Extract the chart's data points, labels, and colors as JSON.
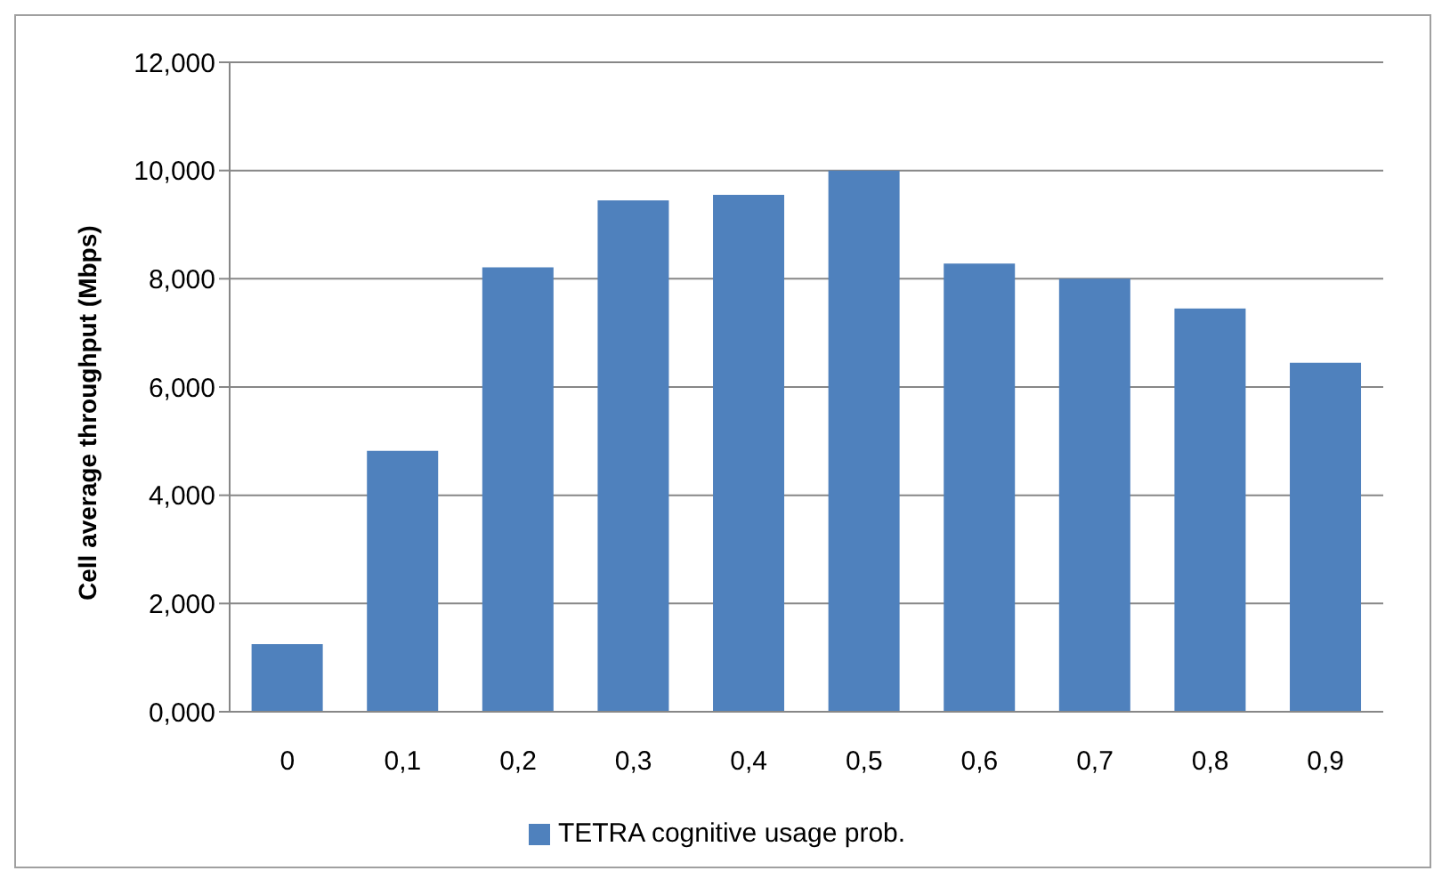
{
  "chart_data": {
    "type": "bar",
    "ylabel": "Cell average throughput (Mbps)",
    "categories": [
      "0",
      "0,1",
      "0,2",
      "0,3",
      "0,4",
      "0,5",
      "0,6",
      "0,7",
      "0,8",
      "0,9"
    ],
    "series": [
      {
        "name": "TETRA cognitive usage prob.",
        "color": "#4f81bd",
        "values": [
          1.25,
          4.82,
          8.21,
          9.45,
          9.55,
          10.0,
          8.28,
          8.0,
          7.45,
          6.45
        ]
      }
    ],
    "ylim": [
      0,
      12
    ],
    "yticks": [
      {
        "value": 0,
        "label": "0,000"
      },
      {
        "value": 2,
        "label": "2,000"
      },
      {
        "value": 4,
        "label": "4,000"
      },
      {
        "value": 6,
        "label": "6,000"
      },
      {
        "value": 8,
        "label": "8,000"
      },
      {
        "value": 10,
        "label": "10,000"
      },
      {
        "value": 12,
        "label": "12,000"
      }
    ],
    "grid": "y",
    "legend": "bottom"
  }
}
